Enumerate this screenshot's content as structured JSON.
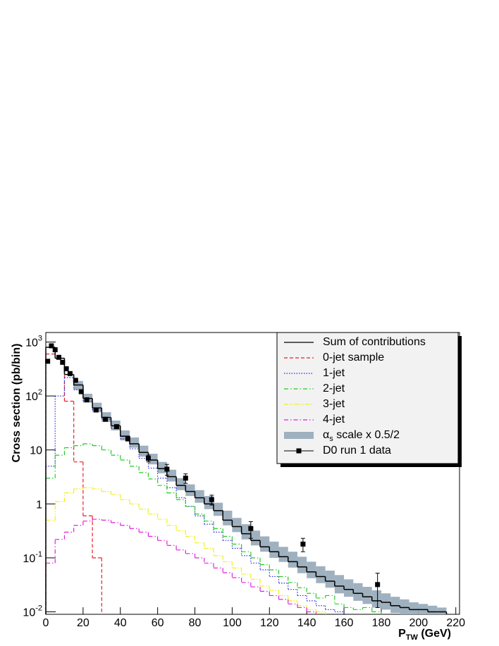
{
  "chart_data": {
    "type": "histogram",
    "ylabel": "Cross section (pb/bin)",
    "xlabel": "P_TW (GeV)",
    "xlim": [
      0,
      222
    ],
    "ylim": [
      0.009,
      1500
    ],
    "log_y": true,
    "xticks": [
      0,
      20,
      40,
      60,
      80,
      100,
      120,
      140,
      160,
      180,
      200,
      220
    ],
    "yticks": [
      {
        "value": 0.01,
        "label": "10^-2"
      },
      {
        "value": 0.1,
        "label": "10^-1"
      },
      1,
      10,
      {
        "value": 100,
        "label": "10^2"
      },
      {
        "value": 1000,
        "label": "10^3"
      }
    ],
    "legend": "top-right",
    "bins": [
      0,
      5,
      10,
      15,
      20,
      25,
      30,
      35,
      40,
      45,
      50,
      55,
      60,
      65,
      70,
      75,
      80,
      85,
      90,
      95,
      100,
      105,
      110,
      115,
      120,
      125,
      130,
      135,
      140,
      145,
      150,
      155,
      160,
      165,
      170,
      175,
      180,
      185,
      190,
      195,
      200,
      205,
      210,
      215
    ],
    "band": {
      "name": "α_s scale x 0.5/2",
      "color": "#9fb0bf",
      "low": [
        null,
        null,
        null,
        130,
        75,
        50,
        33,
        23,
        15,
        11,
        7.5,
        5.4,
        3.7,
        2.6,
        1.8,
        1.4,
        1.05,
        0.8,
        0.6,
        0.4,
        0.3,
        0.22,
        0.17,
        0.13,
        0.1,
        0.084,
        0.066,
        0.052,
        0.042,
        0.034,
        0.028,
        0.022,
        0.019,
        0.016,
        0.014,
        0.012,
        0.011,
        0.0095,
        0.009,
        0.009,
        0.009,
        0.009,
        0.009
      ],
      "high": [
        null,
        null,
        null,
        190,
        110,
        75,
        50,
        35,
        23,
        17,
        12,
        8.5,
        6,
        4.3,
        3,
        2.3,
        1.8,
        1.4,
        1.05,
        0.75,
        0.55,
        0.42,
        0.32,
        0.25,
        0.2,
        0.16,
        0.13,
        0.105,
        0.085,
        0.07,
        0.058,
        0.048,
        0.04,
        0.034,
        0.029,
        0.025,
        0.022,
        0.019,
        0.017,
        0.015,
        0.014,
        0.013,
        0.012
      ]
    },
    "series": [
      {
        "name": "Sum of contributions",
        "color": "#000000",
        "style": "solid",
        "values": [
          800,
          500,
          250,
          160,
          90,
          60,
          40,
          28,
          18,
          13,
          9,
          6.5,
          4.5,
          3.2,
          2.2,
          1.7,
          1.3,
          1.0,
          0.75,
          0.5,
          0.38,
          0.28,
          0.21,
          0.16,
          0.13,
          0.105,
          0.085,
          0.068,
          0.055,
          0.045,
          0.037,
          0.03,
          0.026,
          0.022,
          0.019,
          0.016,
          0.015,
          0.013,
          0.012,
          0.011,
          0.011,
          0.01,
          0.01
        ]
      },
      {
        "name": "0-jet sample",
        "color": "#e8202a",
        "style": "dashed",
        "values": [
          600,
          500,
          80,
          6,
          0.6,
          0.1,
          null,
          null,
          null,
          null,
          null,
          null,
          null,
          null,
          null,
          null,
          null,
          null,
          null,
          null,
          null,
          null,
          null,
          null,
          null,
          null,
          null,
          null,
          null,
          null,
          null,
          null,
          null,
          null,
          null,
          null,
          null,
          null,
          null,
          null,
          null,
          null,
          null
        ]
      },
      {
        "name": "1-jet",
        "color": "#2a2ae0",
        "style": "dotted",
        "values": [
          5,
          100,
          220,
          130,
          80,
          55,
          37,
          25,
          16,
          10.5,
          7,
          4.6,
          3.0,
          2.0,
          1.3,
          0.9,
          0.6,
          0.42,
          0.3,
          0.21,
          0.15,
          0.11,
          0.08,
          0.06,
          0.045,
          0.034,
          0.026,
          0.02,
          0.016,
          0.013,
          0.011,
          0.01,
          null,
          null,
          null,
          null,
          null,
          null,
          null,
          null,
          null,
          null,
          null
        ]
      },
      {
        "name": "2-jet",
        "color": "#22cc22",
        "style": "dashdot",
        "values": [
          3,
          8,
          11,
          12,
          13,
          12,
          10,
          8,
          6.5,
          5,
          3.8,
          2.9,
          2.2,
          1.6,
          1.2,
          0.9,
          0.65,
          0.48,
          0.35,
          0.25,
          0.18,
          0.13,
          0.1,
          0.075,
          0.06,
          0.045,
          0.035,
          0.028,
          0.022,
          0.018,
          0.02,
          0.014,
          0.012,
          0.011,
          0.012,
          0.01,
          null,
          null,
          null,
          null,
          null,
          null,
          null
        ]
      },
      {
        "name": "3-jet",
        "color": "#f0f020",
        "style": "dashdotdot",
        "values": [
          0.5,
          1.1,
          1.6,
          1.9,
          2.0,
          1.9,
          1.7,
          1.5,
          1.2,
          1.0,
          0.8,
          0.65,
          0.52,
          0.4,
          0.32,
          0.25,
          0.19,
          0.15,
          0.11,
          0.085,
          0.065,
          0.05,
          0.04,
          0.03,
          0.025,
          0.02,
          0.016,
          0.013,
          0.011,
          0.01,
          null,
          null,
          null,
          null,
          null,
          null,
          null,
          null,
          null,
          null,
          null,
          null,
          null
        ]
      },
      {
        "name": "4-jet",
        "color": "#e020e0",
        "style": "dashdot",
        "values": [
          0.08,
          0.22,
          0.3,
          0.4,
          0.48,
          0.52,
          0.5,
          0.45,
          0.4,
          0.35,
          0.3,
          0.25,
          0.21,
          0.17,
          0.14,
          0.12,
          0.1,
          0.08,
          0.065,
          0.053,
          0.043,
          0.035,
          0.029,
          0.024,
          0.02,
          0.017,
          0.014,
          0.012,
          0.01,
          null,
          null,
          null,
          null,
          null,
          null,
          null,
          null,
          null,
          null,
          null,
          null,
          null,
          null
        ]
      }
    ],
    "points": {
      "name": "D0 run 1 data",
      "color": "#000000",
      "x": [
        1,
        3,
        5,
        7,
        9,
        11,
        13,
        16,
        19,
        22,
        27,
        32,
        38,
        44,
        55,
        65,
        75,
        89,
        110,
        138,
        178
      ],
      "values": [
        440,
        850,
        720,
        520,
        420,
        320,
        260,
        195,
        120,
        85,
        55,
        37,
        27,
        16,
        7,
        4.4,
        3.0,
        1.2,
        0.35,
        0.18,
        0.032
      ],
      "errors": [
        0,
        0,
        0,
        0,
        0,
        0,
        0,
        0,
        0,
        0,
        0,
        0,
        0,
        0,
        1,
        1,
        0.6,
        0.25,
        0.12,
        0.05,
        0.02
      ]
    }
  }
}
